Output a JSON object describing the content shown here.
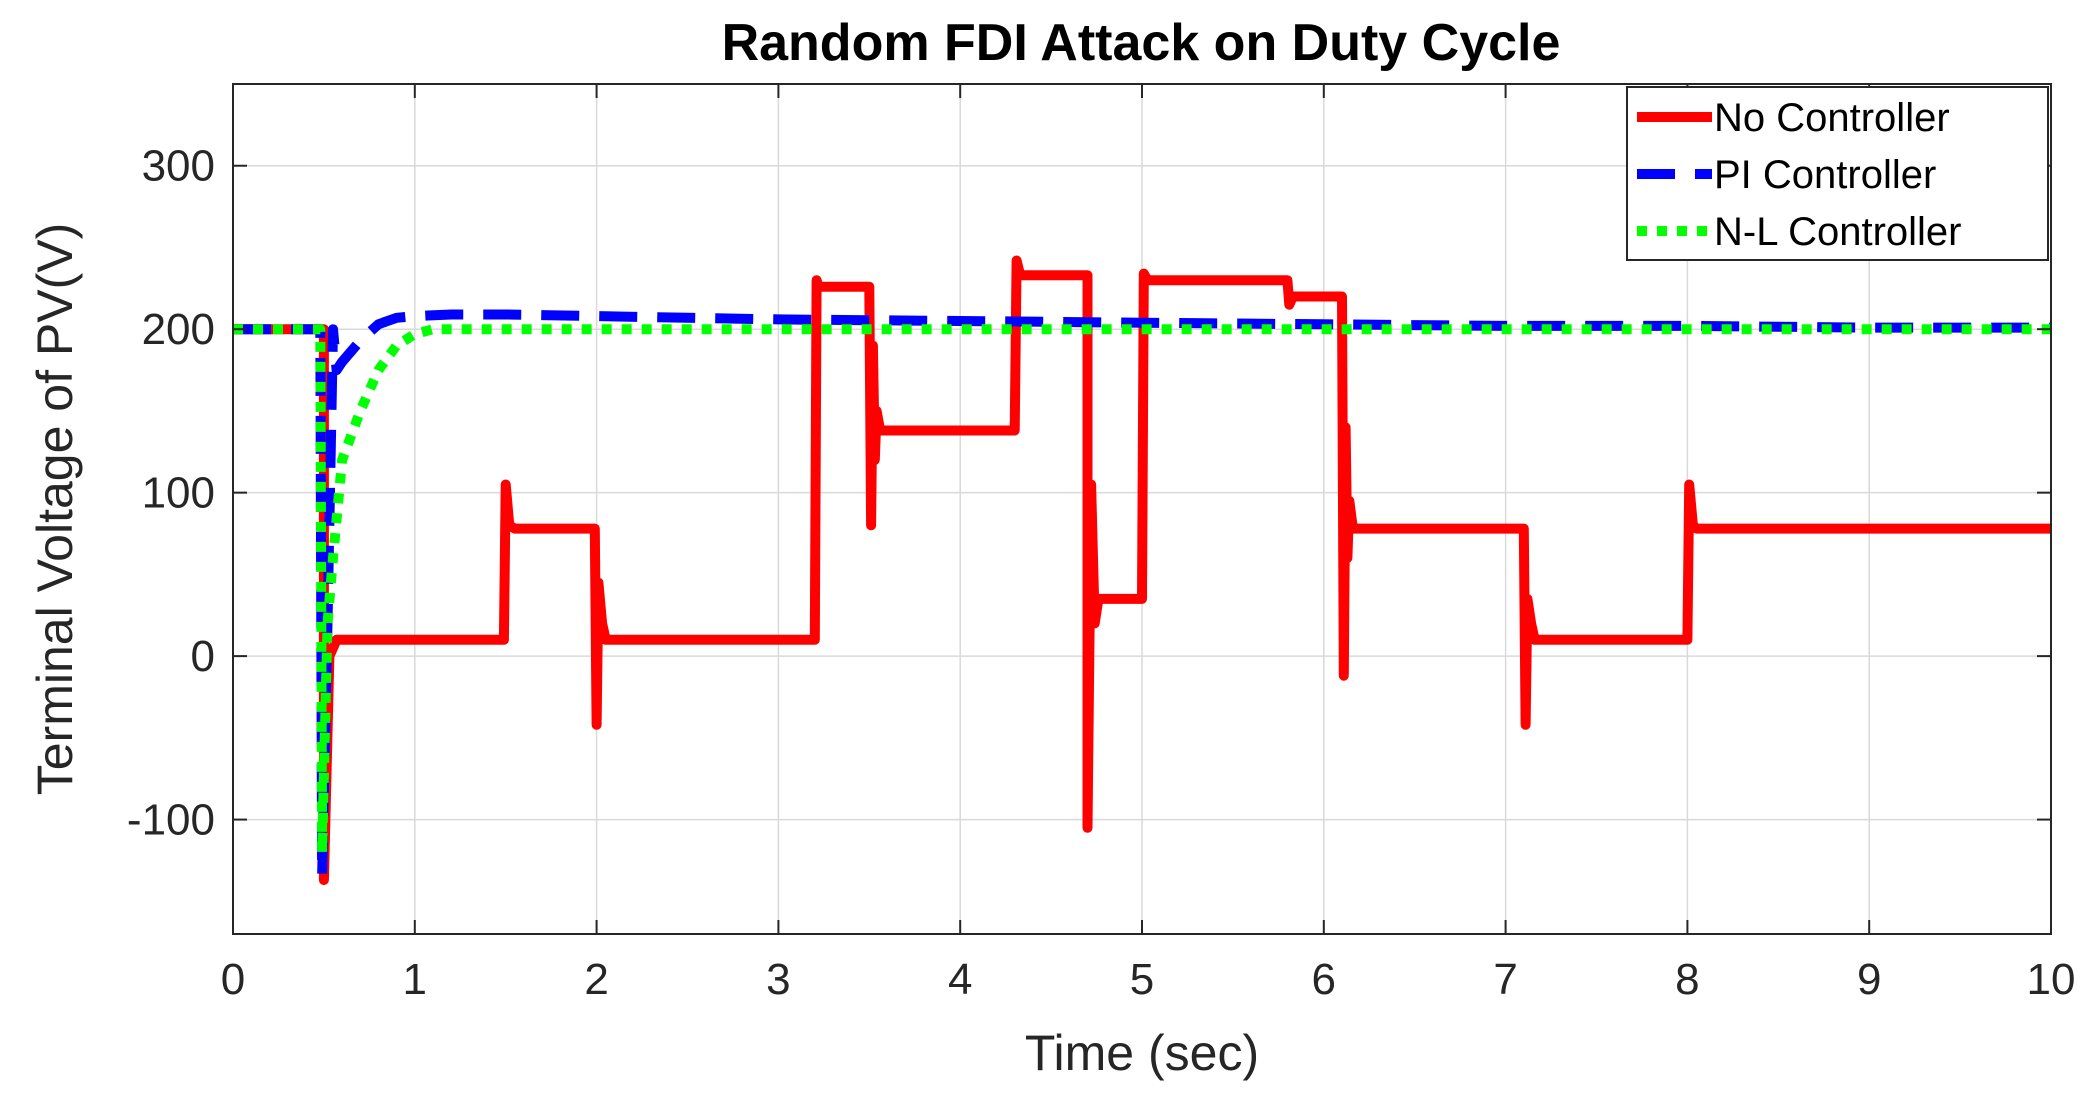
{
  "chart_data": {
    "type": "line",
    "title": "Random FDI Attack on Duty Cycle",
    "xlabel": "Time (sec)",
    "ylabel": "Terminal Voltage of PV(V)",
    "xlim": [
      0,
      10
    ],
    "ylim": [
      -170,
      350
    ],
    "xticks": [
      0,
      1,
      2,
      3,
      4,
      5,
      6,
      7,
      8,
      9,
      10
    ],
    "yticks": [
      -100,
      0,
      100,
      200,
      300
    ],
    "grid": true,
    "legend_position": "top-right",
    "series": [
      {
        "name": "No Controller",
        "color": "#ff0000",
        "style": "solid",
        "x": [
          0,
          0.49,
          0.5,
          0.5,
          0.53,
          0.57,
          0.6,
          0.7,
          1.49,
          1.5,
          1.52,
          1.55,
          1.6,
          1.99,
          2.0,
          2.01,
          2.03,
          2.05,
          2.1,
          3.2,
          3.21,
          3.22,
          3.3,
          3.5,
          3.51,
          3.52,
          3.53,
          3.54,
          3.56,
          3.6,
          4.3,
          4.31,
          4.33,
          4.35,
          4.7,
          4.7,
          4.72,
          4.74,
          4.76,
          4.8,
          5.0,
          5.01,
          5.03,
          5.05,
          5.8,
          5.81,
          5.83,
          6.1,
          6.11,
          6.12,
          6.13,
          6.14,
          6.16,
          6.2,
          7.1,
          7.11,
          7.12,
          7.14,
          7.16,
          7.2,
          8.0,
          8.01,
          8.03,
          8.05,
          8.1,
          10.0
        ],
        "y": [
          200,
          200,
          200,
          -137,
          0,
          10,
          10,
          10,
          10,
          105,
          80,
          78,
          78,
          78,
          -42,
          45,
          20,
          10,
          10,
          10,
          230,
          226,
          226,
          226,
          80,
          190,
          120,
          150,
          138,
          138,
          138,
          242,
          233,
          233,
          233,
          -105,
          105,
          20,
          35,
          35,
          35,
          234,
          230,
          230,
          230,
          215,
          220,
          220,
          -12,
          140,
          60,
          95,
          78,
          78,
          78,
          -42,
          35,
          20,
          10,
          10,
          10,
          105,
          80,
          78,
          78,
          78
        ]
      },
      {
        "name": "PI Controller",
        "color": "#0000ff",
        "style": "dashed",
        "x": [
          0,
          0.48,
          0.49,
          0.52,
          0.55,
          0.57,
          0.6,
          0.7,
          0.8,
          0.9,
          1.0,
          1.2,
          1.5,
          2.0,
          3.0,
          4.0,
          5.0,
          6.0,
          7.0,
          8.0,
          9.0,
          10.0
        ],
        "y": [
          200,
          200,
          -135,
          20,
          200,
          175,
          180,
          193,
          203,
          207,
          208,
          209,
          209,
          208,
          206,
          205,
          204,
          203,
          202,
          202,
          201,
          201
        ]
      },
      {
        "name": "N-L Controller",
        "color": "#00ff00",
        "style": "dotted",
        "x": [
          0,
          0.48,
          0.49,
          0.52,
          0.55,
          0.6,
          0.7,
          0.8,
          0.9,
          1.0,
          1.1,
          1.3,
          1.5,
          2.0,
          3.0,
          4.0,
          5.0,
          6.0,
          7.0,
          8.0,
          9.0,
          10.0
        ],
        "y": [
          200,
          200,
          -120,
          20,
          60,
          120,
          150,
          175,
          190,
          197,
          200,
          200,
          200,
          200,
          200,
          200,
          200,
          200,
          200,
          200,
          200,
          200
        ]
      }
    ]
  }
}
